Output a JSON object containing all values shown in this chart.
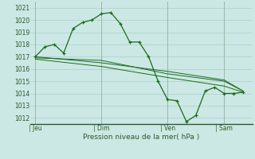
{
  "title": "",
  "xlabel": "Pression niveau de la mer( hPa )",
  "ylabel": "",
  "bg_color": "#cce8e4",
  "grid_color": "#aacccc",
  "vline_color": "#9abaaa",
  "line_color": "#1a6b1a",
  "ylim": [
    1011.5,
    1021.5
  ],
  "day_labels": [
    "| Jeu",
    "| Dim",
    "| Ven",
    "| Sam"
  ],
  "day_positions": [
    0,
    7,
    14,
    20
  ],
  "xlim": [
    -0.5,
    23
  ],
  "line1_x": [
    0,
    1,
    2,
    3,
    4,
    5,
    6,
    7,
    8,
    9,
    10,
    11,
    12,
    13,
    14,
    15,
    16,
    17,
    18,
    19,
    20,
    21,
    22
  ],
  "line1_y": [
    1017.0,
    1017.8,
    1018.0,
    1017.3,
    1019.3,
    1019.8,
    1020.0,
    1020.5,
    1020.6,
    1019.7,
    1018.2,
    1018.2,
    1017.0,
    1015.0,
    1013.5,
    1013.4,
    1011.7,
    1012.2,
    1014.2,
    1014.5,
    1014.0,
    1014.0,
    1014.1
  ],
  "line2_x": [
    0,
    7,
    14,
    20,
    22
  ],
  "line2_y": [
    1017.0,
    1016.5,
    1015.8,
    1015.1,
    1014.2
  ],
  "line3_x": [
    0,
    7,
    14,
    20,
    22
  ],
  "line3_y": [
    1016.8,
    1016.2,
    1015.3,
    1014.6,
    1014.1
  ],
  "line4_x": [
    0,
    7,
    14,
    20,
    22
  ],
  "line4_y": [
    1016.9,
    1016.7,
    1015.6,
    1015.0,
    1014.2
  ]
}
